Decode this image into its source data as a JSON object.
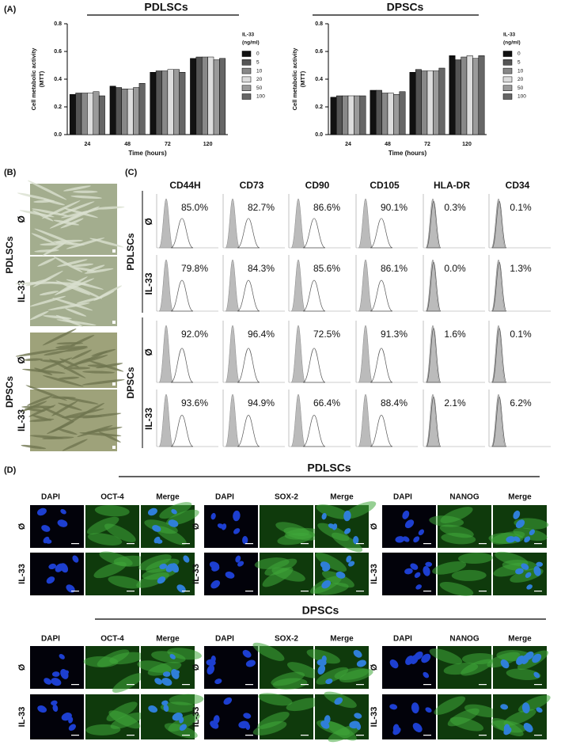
{
  "panel_a": {
    "label": "(A)"
  },
  "chart_data": [
    {
      "type": "bar",
      "title": "PDLSCs",
      "ylabel": [
        "Cell metabolic activity",
        "(MTT)"
      ],
      "xlabel": "Time (hours)",
      "legend_title": [
        "IL-33",
        "(ng/ml)"
      ],
      "categories": [
        "24",
        "48",
        "72",
        "120"
      ],
      "series": [
        {
          "name": "0",
          "color": "#111111",
          "values": [
            0.29,
            0.35,
            0.45,
            0.55
          ]
        },
        {
          "name": "5",
          "color": "#555555",
          "values": [
            0.3,
            0.34,
            0.46,
            0.56
          ]
        },
        {
          "name": "10",
          "color": "#888888",
          "values": [
            0.3,
            0.33,
            0.46,
            0.56
          ]
        },
        {
          "name": "20",
          "color": "#dddddd",
          "values": [
            0.3,
            0.33,
            0.47,
            0.56
          ]
        },
        {
          "name": "50",
          "color": "#9a9a9a",
          "values": [
            0.31,
            0.34,
            0.47,
            0.54
          ]
        },
        {
          "name": "100",
          "color": "#666666",
          "values": [
            0.28,
            0.37,
            0.45,
            0.55
          ]
        }
      ],
      "ylim": [
        0,
        0.8
      ],
      "yticks": [
        {
          "value": 0,
          "label": "0.0"
        },
        0.2,
        0.4,
        0.6,
        0.8
      ]
    },
    {
      "type": "bar",
      "title": "DPSCs",
      "ylabel": [
        "Cell metabolic activity",
        "(MTT)"
      ],
      "xlabel": "Time (hours)",
      "legend_title": [
        "IL-33",
        "(ng/ml)"
      ],
      "categories": [
        "24",
        "48",
        "72",
        "120"
      ],
      "series": [
        {
          "name": "0",
          "color": "#111111",
          "values": [
            0.27,
            0.32,
            0.45,
            0.57
          ]
        },
        {
          "name": "5",
          "color": "#555555",
          "values": [
            0.28,
            0.32,
            0.47,
            0.54
          ]
        },
        {
          "name": "10",
          "color": "#888888",
          "values": [
            0.28,
            0.3,
            0.46,
            0.56
          ]
        },
        {
          "name": "20",
          "color": "#dddddd",
          "values": [
            0.28,
            0.3,
            0.46,
            0.57
          ]
        },
        {
          "name": "50",
          "color": "#9a9a9a",
          "values": [
            0.28,
            0.29,
            0.46,
            0.55
          ]
        },
        {
          "name": "100",
          "color": "#666666",
          "values": [
            0.28,
            0.31,
            0.48,
            0.57
          ]
        }
      ],
      "ylim": [
        0,
        0.8
      ],
      "yticks": [
        {
          "value": 0,
          "label": "0.0"
        },
        0.2,
        0.4,
        0.6,
        0.8
      ]
    }
  ],
  "panel_b": {
    "label": "(B)",
    "groups": [
      {
        "name": "PDLSCs",
        "rows": [
          "Ø",
          "IL-33"
        ]
      },
      {
        "name": "DPSCs",
        "rows": [
          "Ø",
          "IL-33"
        ]
      }
    ]
  },
  "panel_c": {
    "label": "(C)",
    "markers": [
      "CD44H",
      "CD73",
      "CD90",
      "CD105",
      "HLA-DR",
      "CD34"
    ],
    "groups": [
      {
        "name": "PDLSCs",
        "rows": [
          {
            "condition": "Ø",
            "values": [
              "85.0%",
              "82.7%",
              "86.6%",
              "90.1%",
              "0.3%",
              "0.1%"
            ]
          },
          {
            "condition": "IL-33",
            "values": [
              "79.8%",
              "84.3%",
              "85.6%",
              "86.1%",
              "0.0%",
              "1.3%"
            ]
          }
        ]
      },
      {
        "name": "DPSCs",
        "rows": [
          {
            "condition": "Ø",
            "values": [
              "92.0%",
              "96.4%",
              "72.5%",
              "91.3%",
              "1.6%",
              "0.1%"
            ]
          },
          {
            "condition": "IL-33",
            "values": [
              "93.6%",
              "94.9%",
              "66.4%",
              "88.4%",
              "2.1%",
              "6.2%"
            ]
          }
        ]
      }
    ]
  },
  "panel_d": {
    "label": "(D)",
    "groups": [
      {
        "name": "PDLSCs",
        "rows": [
          "Ø",
          "IL-33"
        ],
        "blocks": [
          [
            "DAPI",
            "OCT-4",
            "Merge"
          ],
          [
            "DAPI",
            "SOX-2",
            "Merge"
          ],
          [
            "DAPI",
            "NANOG",
            "Merge"
          ]
        ]
      },
      {
        "name": "DPSCs",
        "rows": [
          "Ø",
          "IL-33"
        ],
        "blocks": [
          [
            "DAPI",
            "OCT-4",
            "Merge"
          ],
          [
            "DAPI",
            "SOX-2",
            "Merge"
          ],
          [
            "DAPI",
            "NANOG",
            "Merge"
          ]
        ]
      }
    ]
  }
}
